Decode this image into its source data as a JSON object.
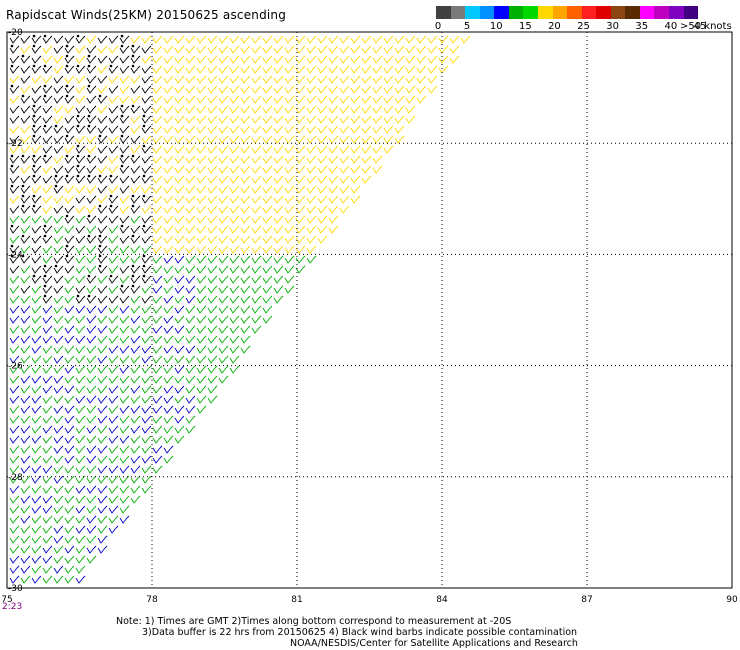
{
  "title": "Rapidscat Winds(25KM) 20150625 ascending",
  "legend": {
    "colors": [
      "#404040",
      "#7a7a7a",
      "#00c8ff",
      "#0090ff",
      "#0000ff",
      "#00b000",
      "#00d800",
      "#ffd800",
      "#ffa500",
      "#ff6000",
      "#ff2020",
      "#e00000",
      "#8b4513",
      "#5a2a00",
      "#ff00ff",
      "#c000c0",
      "#8000c0",
      "#400080"
    ],
    "labels": [
      "0",
      "5",
      "10",
      "15",
      "20",
      "25",
      "30",
      "35",
      "40",
      "45"
    ],
    "unit_label": ">50 knots"
  },
  "map": {
    "lon_ticks": [
      "75",
      "78",
      "81",
      "84",
      "87",
      "90"
    ],
    "lat_ticks": [
      "-20",
      "-22",
      "-24",
      "-26",
      "-28",
      "-30"
    ],
    "lon_range": [
      75,
      90
    ],
    "lat_range": [
      -30,
      -20
    ],
    "corner_time": "2:23",
    "grid": "dotted",
    "barb_colors": {
      "contaminated": "#000000",
      "blue": "#0000cc",
      "green": "#00b000",
      "yellow": "#ffd800"
    }
  },
  "notes": {
    "line1": "Note: 1) Times are GMT 2)Times along bottom correspond to measurement at -20S",
    "line2": "3)Data buffer is 22 hrs from 20150625 4) Black wind barbs indicate possible contamination",
    "line3": "NOAA/NESDIS/Center for Satellite Applications and Research"
  }
}
